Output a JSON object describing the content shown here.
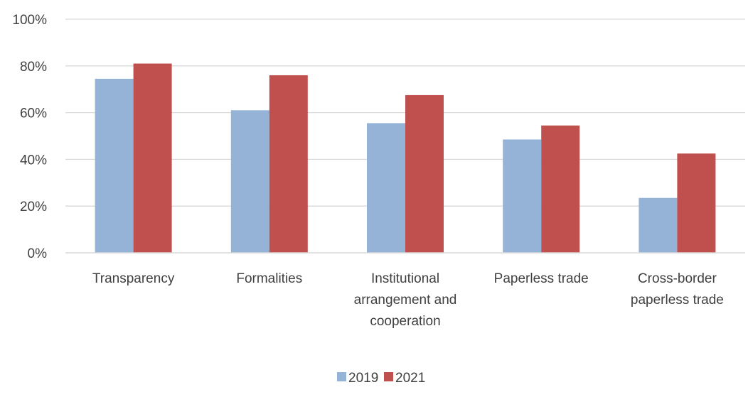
{
  "chart_data": {
    "type": "bar",
    "title": "",
    "xlabel": "",
    "ylabel": "",
    "ylim": [
      0,
      100
    ],
    "y_ticks": [
      "0%",
      "20%",
      "40%",
      "60%",
      "80%",
      "100%"
    ],
    "y_tick_values": [
      0,
      20,
      40,
      60,
      80,
      100
    ],
    "grid": true,
    "legend_position": "bottom",
    "categories": [
      [
        "Transparency"
      ],
      [
        "Formalities"
      ],
      [
        "Institutional",
        "arrangement and",
        "cooperation"
      ],
      [
        "Paperless trade"
      ],
      [
        "Cross-border",
        "paperless trade"
      ]
    ],
    "series": [
      {
        "name": "2019",
        "color": "#95B3D7",
        "values": [
          74.5,
          61,
          55.5,
          48.5,
          23.5
        ]
      },
      {
        "name": "2021",
        "color": "#C0504D",
        "values": [
          81,
          76,
          67.5,
          54.5,
          42.5
        ]
      }
    ],
    "colors": {
      "grid": "#d9d9d9",
      "axis": "#d9d9d9",
      "text": "#404040"
    }
  }
}
